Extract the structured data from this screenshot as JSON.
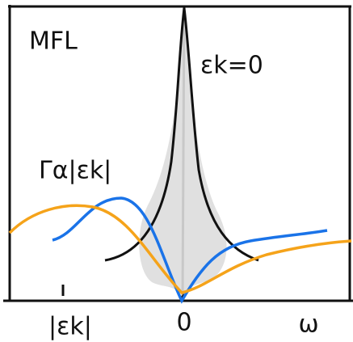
{
  "labels": {
    "title": "MFL",
    "peak": "εk=0",
    "rate": "Γα|εk|",
    "x_mark": "|εk|",
    "x_zero": "0",
    "x_axis": "ω"
  }
}
